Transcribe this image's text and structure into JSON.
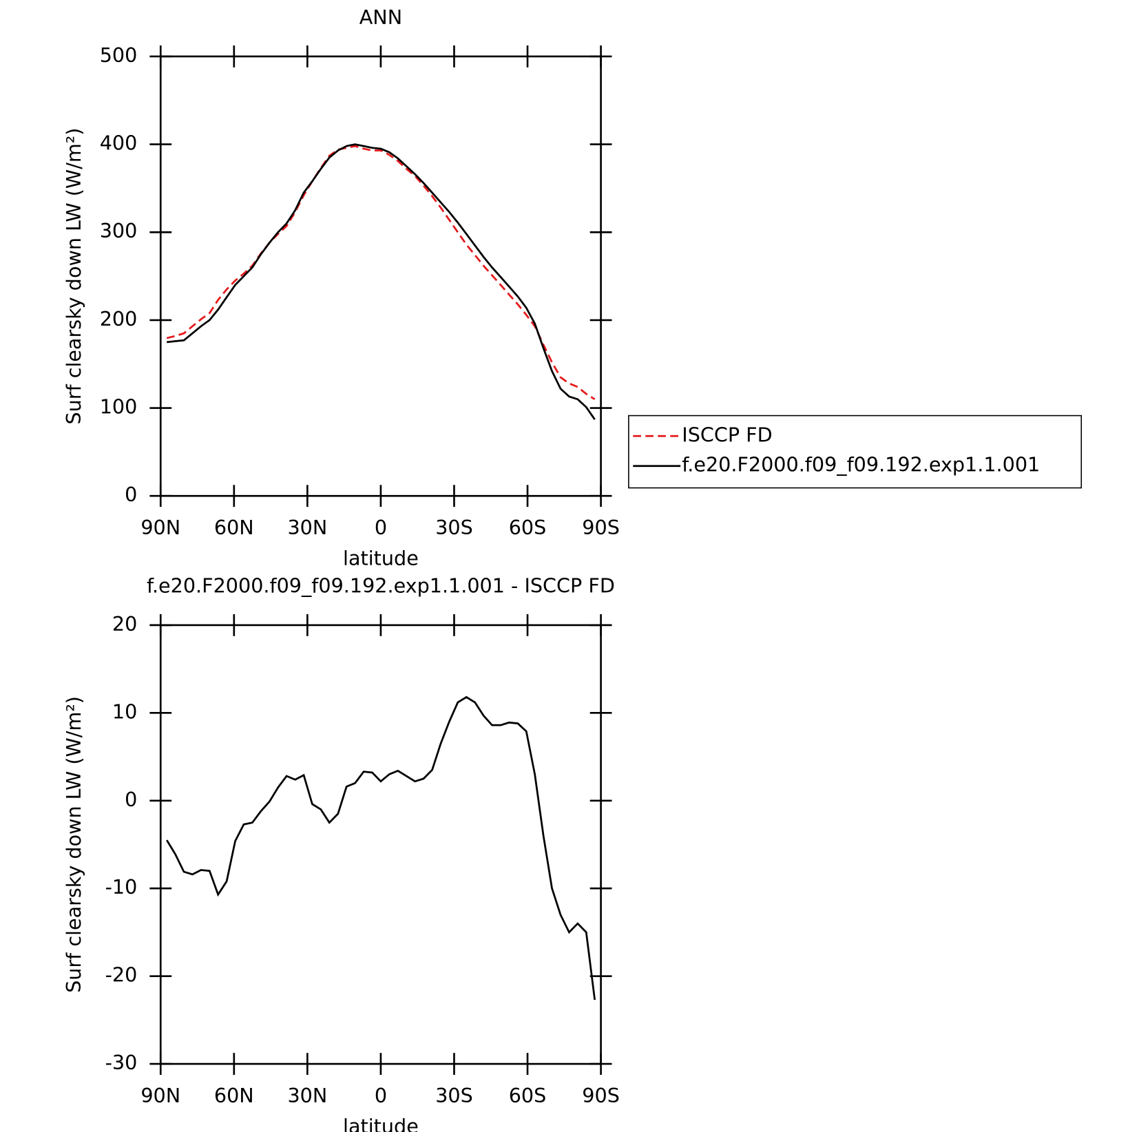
{
  "chart_data": [
    {
      "type": "line",
      "title": "ANN",
      "xlabel": "latitude",
      "ylabel": "Surf clearsky down LW (W/m²)",
      "x": [
        87.5,
        84,
        80.5,
        77,
        73.5,
        70,
        66.5,
        63,
        59.5,
        56,
        52.5,
        49,
        45.5,
        42,
        38.5,
        35,
        31.5,
        28,
        24.5,
        21,
        17.5,
        14,
        10.5,
        7,
        3.5,
        0,
        -3.5,
        -7,
        -10.5,
        -14,
        -17.5,
        -21,
        -24.5,
        -28,
        -31.5,
        -35,
        -38.5,
        -42,
        -45.5,
        -49,
        -52.5,
        -56,
        -59.5,
        -63,
        -66.5,
        -70,
        -73.5,
        -77,
        -80.5,
        -84,
        -87.5
      ],
      "series": [
        {
          "name": "ISCCP FD",
          "color": "#e41a1c",
          "dash": true,
          "values": [
            179.5,
            182,
            185,
            193,
            201,
            208,
            223,
            235,
            245,
            253,
            262,
            276,
            288,
            298,
            307,
            323,
            342,
            358,
            373,
            387,
            394,
            396,
            398,
            395,
            393,
            393,
            388,
            381,
            372,
            364,
            353,
            341,
            328,
            314,
            300,
            286,
            274,
            262,
            251,
            240,
            229,
            218,
            206,
            193,
            172,
            152,
            135,
            128,
            124,
            116,
            110
          ]
        },
        {
          "name": "f.e20.F2000.f09_f09.192.exp1.1.001",
          "color": "#000000",
          "dash": false,
          "values": [
            175,
            176,
            177,
            185,
            193,
            200,
            212,
            226,
            240,
            250,
            260,
            275,
            288,
            300,
            310,
            325,
            345,
            358,
            372,
            385,
            393,
            398,
            400,
            398,
            396,
            395,
            391,
            384,
            375,
            366,
            356,
            345,
            334,
            323,
            311,
            298,
            285,
            272,
            260,
            249,
            238,
            227,
            214,
            196,
            168,
            142,
            122,
            113,
            110,
            101,
            87
          ]
        }
      ],
      "xlim": [
        90,
        -90
      ],
      "xticks": [
        {
          "value": 90,
          "label": "90N"
        },
        {
          "value": 60,
          "label": "60N"
        },
        {
          "value": 30,
          "label": "30N"
        },
        0,
        {
          "value": -30,
          "label": "30S"
        },
        {
          "value": -60,
          "label": "60S"
        },
        {
          "value": -90,
          "label": "90S"
        }
      ],
      "ylim": [
        0,
        500
      ],
      "yticks": [
        0,
        100,
        200,
        300,
        400,
        500
      ],
      "legend": "right"
    },
    {
      "type": "line",
      "title": "f.e20.F2000.f09_f09.192.exp1.1.001 - ISCCP FD",
      "xlabel": "latitude",
      "ylabel": "Surf clearsky down LW (W/m²)",
      "x": [
        87.5,
        84,
        80.5,
        77,
        73.5,
        70,
        66.5,
        63,
        59.5,
        56,
        52.5,
        49,
        45.5,
        42,
        38.5,
        35,
        31.5,
        28,
        24.5,
        21,
        17.5,
        14,
        10.5,
        7,
        3.5,
        0,
        -3.5,
        -7,
        -10.5,
        -14,
        -17.5,
        -21,
        -24.5,
        -28,
        -31.5,
        -35,
        -38.5,
        -42,
        -45.5,
        -49,
        -52.5,
        -56,
        -59.5,
        -63,
        -66.5,
        -70,
        -73.5,
        -77,
        -80.5,
        -84,
        -87.5
      ],
      "series": [
        {
          "color": "#000000",
          "dash": false,
          "values": [
            -4.5,
            -6.1,
            -8.1,
            -8.4,
            -7.9,
            -8.0,
            -10.7,
            -9.2,
            -4.6,
            -2.7,
            -2.5,
            -1.2,
            -0.1,
            1.5,
            2.8,
            2.4,
            2.9,
            -0.4,
            -1.0,
            -2.5,
            -1.5,
            1.6,
            2.0,
            3.3,
            3.2,
            2.2,
            3.0,
            3.4,
            2.8,
            2.2,
            2.5,
            3.5,
            6.5,
            9.0,
            11.2,
            11.8,
            11.2,
            9.7,
            8.6,
            8.6,
            8.9,
            8.8,
            7.9,
            3.0,
            -4.0,
            -10.0,
            -13.0,
            -15.0,
            -14.0,
            -15.0,
            -22.7
          ]
        }
      ],
      "xlim": [
        90,
        -90
      ],
      "xticks": [
        {
          "value": 90,
          "label": "90N"
        },
        {
          "value": 60,
          "label": "60N"
        },
        {
          "value": 30,
          "label": "30N"
        },
        0,
        {
          "value": -30,
          "label": "30S"
        },
        {
          "value": -60,
          "label": "60S"
        },
        {
          "value": -90,
          "label": "90S"
        }
      ],
      "ylim": [
        -30,
        20
      ],
      "yticks": [
        -30,
        -20,
        -10,
        0,
        10,
        20
      ]
    }
  ]
}
